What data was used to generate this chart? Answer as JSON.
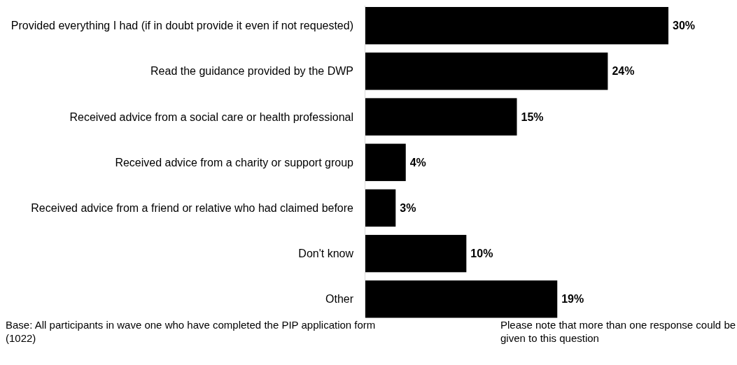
{
  "chart_data": {
    "type": "bar",
    "orientation": "horizontal",
    "categories": [
      "Provided everything I had (if in doubt provide it even if not requested)",
      "Read the guidance provided by the DWP",
      "Received advice from a social care or health professional",
      "Received advice from a charity or support group",
      "Received advice from a friend or relative who had claimed before",
      "Don't know",
      "Other"
    ],
    "values": [
      30,
      24,
      15,
      4,
      3,
      10,
      19
    ],
    "value_labels": [
      "30%",
      "24%",
      "15%",
      "4%",
      "3%",
      "10%",
      "19%"
    ],
    "color": "#000000",
    "annotations": [
      "Base: All participants in wave one who have completed the PIP application form (1022)",
      "Please note that more than one response could be given to this question"
    ]
  }
}
